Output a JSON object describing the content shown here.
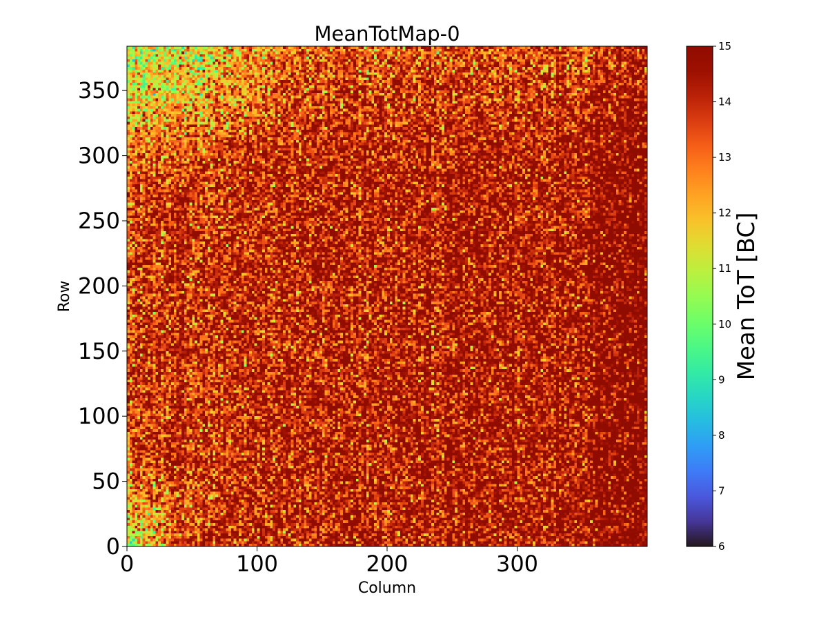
{
  "chart_data": {
    "type": "heatmap",
    "title": "MeanTotMap-0",
    "xlabel": "Column",
    "ylabel": "Row",
    "xlim": [
      0,
      400
    ],
    "ylim": [
      0,
      384
    ],
    "xticks": [
      0,
      100,
      200,
      300
    ],
    "yticks": [
      0,
      50,
      100,
      150,
      200,
      250,
      300,
      350
    ],
    "colormap": "turbo",
    "grid": false,
    "colorbar": {
      "label": "Mean ToT [BC]",
      "min": 6,
      "max": 15,
      "ticks": [
        6,
        7,
        8,
        9,
        10,
        11,
        12,
        13,
        14,
        15
      ]
    },
    "value_summary": {
      "typical_range": [
        11,
        15
      ],
      "dominant_level": 14,
      "lower_values_near_edges": "top-left region and bottom-left corner (around 10-12)",
      "higher_values": "right side columns ~360-400 (around 14-15)"
    }
  }
}
